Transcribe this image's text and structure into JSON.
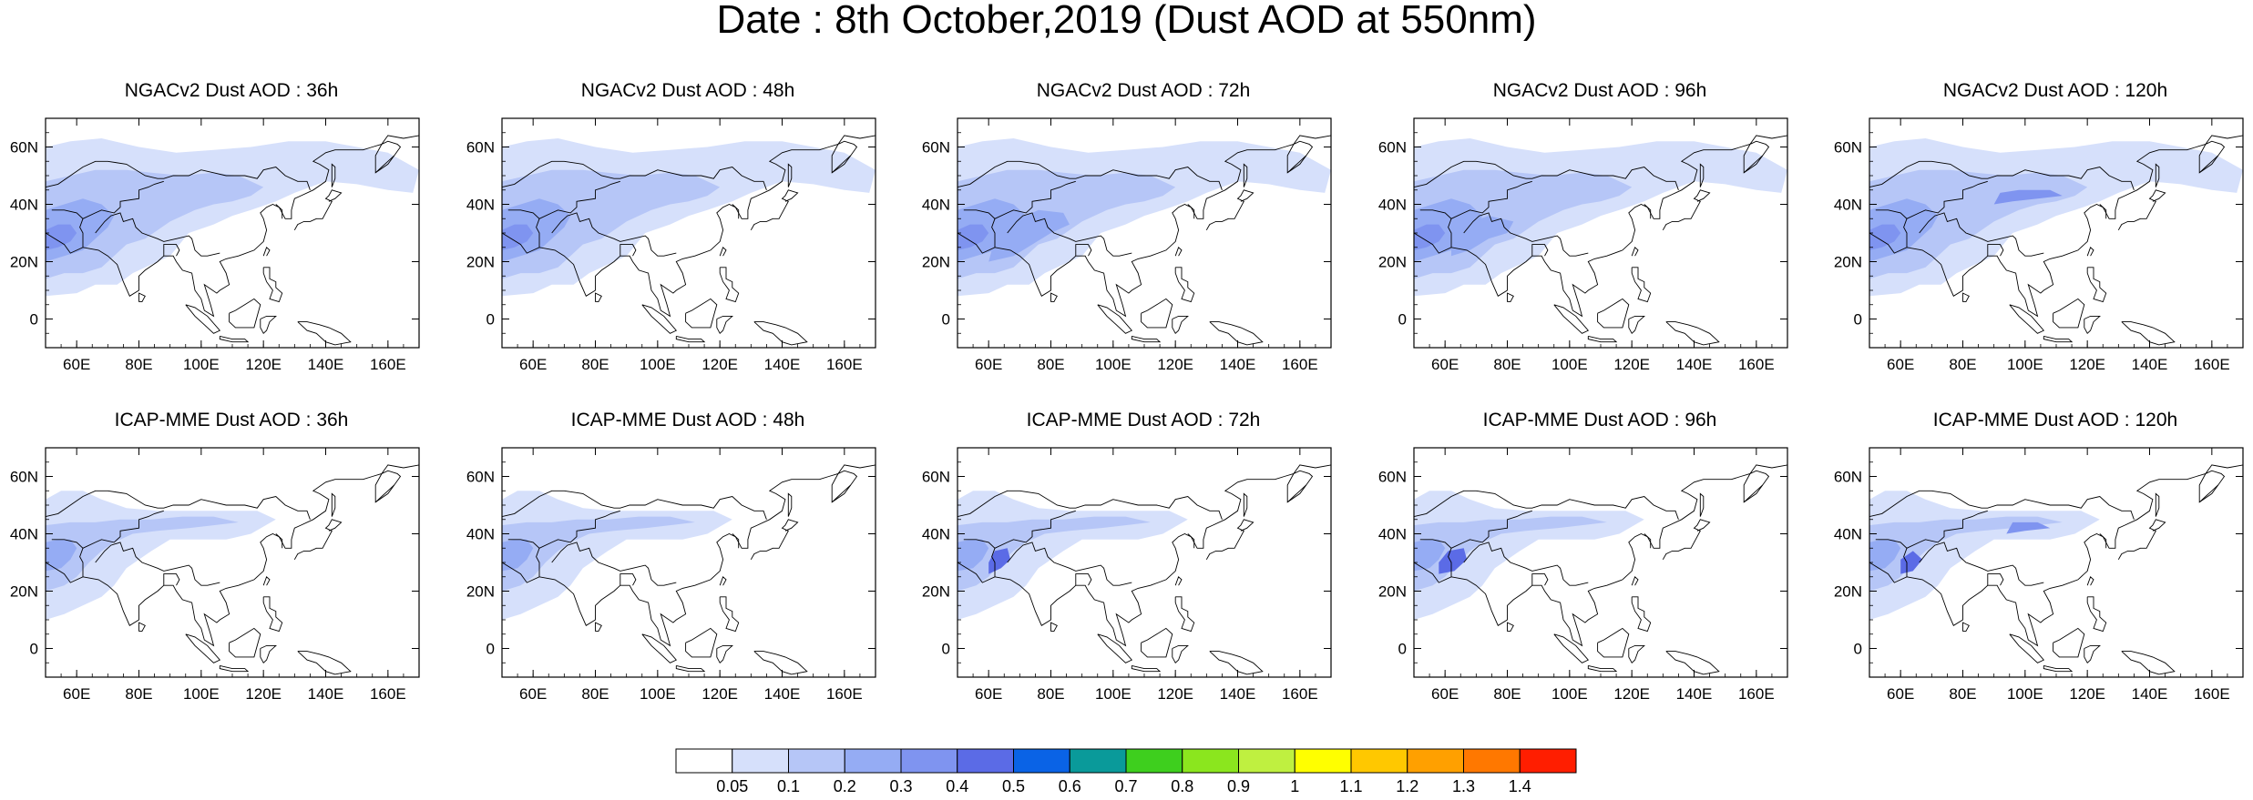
{
  "figure": {
    "title": "Date : 8th October,2019 (Dust AOD at 550nm)"
  },
  "map_extent": {
    "lon_min": 50,
    "lon_max": 170,
    "lat_min": -10,
    "lat_max": 70
  },
  "axis": {
    "x_ticks": [
      60,
      80,
      100,
      120,
      140,
      160
    ],
    "x_tick_labels": [
      "60E",
      "80E",
      "100E",
      "120E",
      "140E",
      "160E"
    ],
    "y_ticks": [
      0,
      20,
      40,
      60
    ],
    "y_tick_labels": [
      "0",
      "20N",
      "40N",
      "60N"
    ]
  },
  "panels": [
    {
      "title": "NGACv2 Dust AOD : 36h",
      "row": 0,
      "col": 0
    },
    {
      "title": "NGACv2 Dust AOD : 48h",
      "row": 0,
      "col": 1
    },
    {
      "title": "NGACv2 Dust AOD : 72h",
      "row": 0,
      "col": 2
    },
    {
      "title": "NGACv2 Dust AOD : 96h",
      "row": 0,
      "col": 3
    },
    {
      "title": "NGACv2 Dust AOD : 120h",
      "row": 0,
      "col": 4
    },
    {
      "title": "ICAP-MME Dust AOD : 36h",
      "row": 1,
      "col": 0
    },
    {
      "title": "ICAP-MME Dust AOD : 48h",
      "row": 1,
      "col": 1
    },
    {
      "title": "ICAP-MME Dust AOD : 72h",
      "row": 1,
      "col": 2
    },
    {
      "title": "ICAP-MME Dust AOD : 96h",
      "row": 1,
      "col": 3
    },
    {
      "title": "ICAP-MME Dust AOD : 120h",
      "row": 1,
      "col": 4
    }
  ],
  "colorbar": {
    "levels": [
      "0.05",
      "0.1",
      "0.2",
      "0.3",
      "0.4",
      "0.5",
      "0.6",
      "0.7",
      "0.8",
      "0.9",
      "1",
      "1.1",
      "1.2",
      "1.3",
      "1.4"
    ],
    "colors": [
      "#ffffff",
      "#d6e0fb",
      "#b6c6f7",
      "#95acf4",
      "#7f94f0",
      "#5b6be6",
      "#0a63e6",
      "#0a9a9a",
      "#3ecf1e",
      "#8be61e",
      "#bff040",
      "#ffff00",
      "#ffc800",
      "#ffa000",
      "#ff7800",
      "#ff1e00"
    ]
  }
}
